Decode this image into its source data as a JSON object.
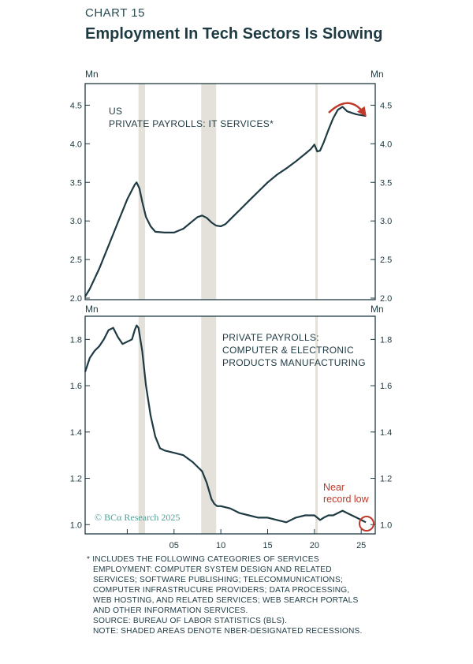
{
  "header": {
    "chart_number": "CHART 15",
    "title": "Employment In Tech Sectors Is Slowing"
  },
  "colors": {
    "line": "#1e3a43",
    "recession": "#e3e1da",
    "accent": "#c0392b",
    "watermark": "#4fa39a"
  },
  "watermark": "© BCα Research 2025",
  "chart_data": [
    {
      "type": "line",
      "name": "us-it-services",
      "title_lines": [
        "US",
        "PRIVATE PAYROLLS: IT SERVICES*"
      ],
      "unit_left": "Mn",
      "unit_right": "Mn",
      "ylim": [
        1.98,
        4.78
      ],
      "yticks": [
        2.0,
        2.5,
        3.0,
        3.5,
        4.0,
        4.5
      ],
      "ytick_labels": [
        "2.0",
        "2.5",
        "3.0",
        "3.5",
        "4.0",
        "4.5"
      ],
      "xlim": [
        1995.5,
        2026.5
      ],
      "x": [
        1995.5,
        1996,
        1997,
        1998,
        1999,
        2000,
        2000.5,
        2000.8,
        2001,
        2001.3,
        2001.6,
        2002,
        2002.5,
        2003,
        2004,
        2005,
        2006,
        2007,
        2007.5,
        2008,
        2008.5,
        2009,
        2009.5,
        2010,
        2010.5,
        2011,
        2012,
        2013,
        2014,
        2015,
        2016,
        2017,
        2018,
        2019,
        2019.6,
        2020,
        2020.3,
        2020.6,
        2021,
        2021.5,
        2022,
        2022.5,
        2023,
        2023.5,
        2024,
        2024.5,
        2025,
        2025.5
      ],
      "values": [
        2.02,
        2.12,
        2.38,
        2.68,
        2.98,
        3.28,
        3.4,
        3.47,
        3.5,
        3.42,
        3.25,
        3.05,
        2.93,
        2.86,
        2.85,
        2.85,
        2.9,
        3.0,
        3.05,
        3.07,
        3.04,
        2.98,
        2.94,
        2.93,
        2.96,
        3.02,
        3.14,
        3.26,
        3.38,
        3.5,
        3.6,
        3.68,
        3.77,
        3.87,
        3.93,
        3.99,
        3.9,
        3.91,
        4.02,
        4.18,
        4.33,
        4.44,
        4.48,
        4.42,
        4.4,
        4.38,
        4.37,
        4.36
      ]
    },
    {
      "type": "line",
      "name": "computer-electronic-manufacturing",
      "title_lines": [
        "PRIVATE PAYROLLS:",
        "COMPUTER & ELECTRONIC",
        "PRODUCTS MANUFACTURING"
      ],
      "unit_left": "Mn",
      "unit_right": "Mn",
      "ylim": [
        0.96,
        1.9
      ],
      "yticks": [
        1.0,
        1.2,
        1.4,
        1.6,
        1.8
      ],
      "ytick_labels": [
        "1.0",
        "1.2",
        "1.4",
        "1.6",
        "1.8"
      ],
      "xlim": [
        1995.5,
        2026.5
      ],
      "xticks": [
        2000,
        2005,
        2010,
        2015,
        2020,
        2025
      ],
      "xtick_labels": [
        "",
        "05",
        "10",
        "15",
        "20",
        "25"
      ],
      "annotation": [
        "Near",
        "record low"
      ],
      "x": [
        1995.5,
        1996,
        1996.5,
        1997,
        1997.5,
        1998,
        1998.5,
        1999,
        1999.5,
        2000,
        2000.5,
        2000.8,
        2001,
        2001.2,
        2001.6,
        2002,
        2002.5,
        2003,
        2003.5,
        2004,
        2005,
        2006,
        2007,
        2007.5,
        2008,
        2008.5,
        2009,
        2009.3,
        2009.6,
        2010,
        2011,
        2012,
        2013,
        2014,
        2015,
        2016,
        2017,
        2018,
        2019,
        2019.5,
        2020,
        2020.3,
        2020.6,
        2021,
        2021.5,
        2022,
        2022.5,
        2023,
        2023.5,
        2024,
        2024.5,
        2025,
        2025.5
      ],
      "values": [
        1.66,
        1.72,
        1.75,
        1.77,
        1.8,
        1.84,
        1.85,
        1.81,
        1.78,
        1.79,
        1.8,
        1.84,
        1.86,
        1.85,
        1.75,
        1.6,
        1.47,
        1.38,
        1.33,
        1.32,
        1.31,
        1.3,
        1.27,
        1.25,
        1.23,
        1.18,
        1.11,
        1.09,
        1.08,
        1.08,
        1.07,
        1.05,
        1.04,
        1.03,
        1.03,
        1.02,
        1.01,
        1.03,
        1.04,
        1.04,
        1.04,
        1.03,
        1.02,
        1.03,
        1.04,
        1.04,
        1.05,
        1.06,
        1.05,
        1.04,
        1.03,
        1.02,
        1.01
      ]
    }
  ],
  "recessions": [
    [
      2001.2,
      2001.9
    ],
    [
      2007.9,
      2009.5
    ],
    [
      2020.1,
      2020.35
    ]
  ],
  "footnotes": {
    "asterisk_note": [
      "* INCLUDES THE FOLLOWING CATEGORIES OF SERVICES",
      "EMPLOYMENT: COMPUTER SYSTEM DESIGN AND RELATED",
      "SERVICES; SOFTWARE PUBLISHING; TELECOMMUNICATIONS;",
      "COMPUTER INFRASTRUCURE PROVIDERS; DATA PROCESSING,",
      "WEB HOSTING, AND RELATED SERVICES; WEB SEARCH PORTALS",
      "AND OTHER INFORMATION SERVICES."
    ],
    "source": "SOURCE: BUREAU OF LABOR STATISTICS (BLS).",
    "note": "NOTE: SHADED AREAS DENOTE NBER-DESIGNATED RECESSIONS."
  }
}
